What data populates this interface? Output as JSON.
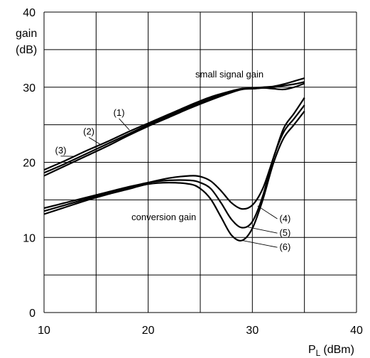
{
  "chart_data": {
    "type": "line",
    "title": "",
    "xlabel_main": "P",
    "xlabel_sub": "L",
    "xlabel_unit": "(dBm)",
    "ylabel_line1": "gain",
    "ylabel_line2": "(dB)",
    "xlim": [
      10,
      40
    ],
    "ylim": [
      0,
      40
    ],
    "x_ticks": [
      10,
      20,
      30,
      40
    ],
    "y_ticks": [
      0,
      10,
      20,
      30,
      40
    ],
    "grid": true,
    "series": [
      {
        "name": "(1)",
        "group": "small signal gain",
        "x": [
          10,
          12,
          14,
          16,
          18,
          20,
          22,
          24,
          26,
          28,
          29,
          30,
          31,
          32,
          33,
          34,
          35
        ],
        "y": [
          18.2,
          19.5,
          20.8,
          22.1,
          23.5,
          24.8,
          26.0,
          27.2,
          28.3,
          29.3,
          29.7,
          29.8,
          29.9,
          30.0,
          30.2,
          30.4,
          30.7
        ]
      },
      {
        "name": "(2)",
        "group": "small signal gain",
        "x": [
          10,
          12,
          14,
          16,
          18,
          20,
          22,
          24,
          26,
          28,
          29,
          30,
          31,
          32,
          33,
          34,
          35
        ],
        "y": [
          18.6,
          19.8,
          21.1,
          22.4,
          23.7,
          25.0,
          26.2,
          27.4,
          28.5,
          29.4,
          29.8,
          29.8,
          29.9,
          29.8,
          29.7,
          30.0,
          30.5
        ]
      },
      {
        "name": "(3)",
        "group": "small signal gain",
        "x": [
          10,
          12,
          14,
          16,
          18,
          20,
          22,
          24,
          26,
          28,
          29,
          30,
          31,
          32,
          33,
          34,
          35
        ],
        "y": [
          19.0,
          20.2,
          21.5,
          22.7,
          24.0,
          25.2,
          26.4,
          27.6,
          28.7,
          29.5,
          29.8,
          29.9,
          30.0,
          30.1,
          30.4,
          30.8,
          31.2
        ]
      },
      {
        "name": "(4)",
        "group": "conversion gain",
        "x": [
          10,
          12,
          14,
          16,
          18,
          20,
          22,
          24,
          25,
          26,
          27,
          28,
          29,
          30,
          31,
          32,
          33,
          34,
          35
        ],
        "y": [
          13.9,
          14.6,
          15.3,
          16.0,
          16.7,
          17.3,
          17.9,
          18.2,
          18.1,
          17.5,
          16.2,
          14.6,
          13.8,
          14.3,
          16.5,
          20.5,
          24.5,
          26.5,
          28.6
        ]
      },
      {
        "name": "(5)",
        "group": "conversion gain",
        "x": [
          10,
          12,
          14,
          16,
          18,
          20,
          22,
          24,
          25,
          26,
          27,
          28,
          29,
          30,
          31,
          32,
          33,
          34,
          35
        ],
        "y": [
          13.5,
          14.3,
          15.1,
          15.9,
          16.6,
          17.3,
          17.6,
          17.6,
          17.3,
          16.5,
          14.6,
          12.4,
          11.3,
          12.1,
          15.5,
          20.5,
          24.0,
          25.8,
          27.6
        ]
      },
      {
        "name": "(6)",
        "group": "conversion gain",
        "x": [
          10,
          12,
          14,
          16,
          18,
          20,
          22,
          24,
          25,
          26,
          27,
          28,
          29,
          30,
          31,
          32,
          33,
          34,
          35
        ],
        "y": [
          13.1,
          14.0,
          14.9,
          15.7,
          16.4,
          17.1,
          17.3,
          17.1,
          16.5,
          15.1,
          12.7,
          10.3,
          9.6,
          11.2,
          15.0,
          19.8,
          23.2,
          25.0,
          26.8
        ]
      }
    ],
    "annotations": [
      {
        "text": "small signal gain",
        "x": 27.8,
        "y": 31.3,
        "anchor": "middle"
      },
      {
        "text": "conversion gain",
        "x": 21.5,
        "y": 12.3,
        "anchor": "middle"
      },
      {
        "text": "(1)",
        "x": 17.2,
        "y": 26.2,
        "anchor": "middle",
        "leader_to": [
          18.2,
          24.3
        ]
      },
      {
        "text": "(2)",
        "x": 14.3,
        "y": 23.7,
        "anchor": "middle",
        "leader_to": [
          15.5,
          22.3
        ]
      },
      {
        "text": "(3)",
        "x": 11.6,
        "y": 21.2,
        "anchor": "middle",
        "leader_to": [
          12.8,
          20.8
        ]
      },
      {
        "text": "(4)",
        "x": 32.6,
        "y": 12.1,
        "anchor": "start",
        "leader_to": [
          30.5,
          14.2
        ]
      },
      {
        "text": "(5)",
        "x": 32.6,
        "y": 10.2,
        "anchor": "start",
        "leader_to": [
          29.5,
          11.4
        ]
      },
      {
        "text": "(6)",
        "x": 32.6,
        "y": 8.3,
        "anchor": "start",
        "leader_to": [
          29.0,
          9.6
        ]
      }
    ]
  }
}
